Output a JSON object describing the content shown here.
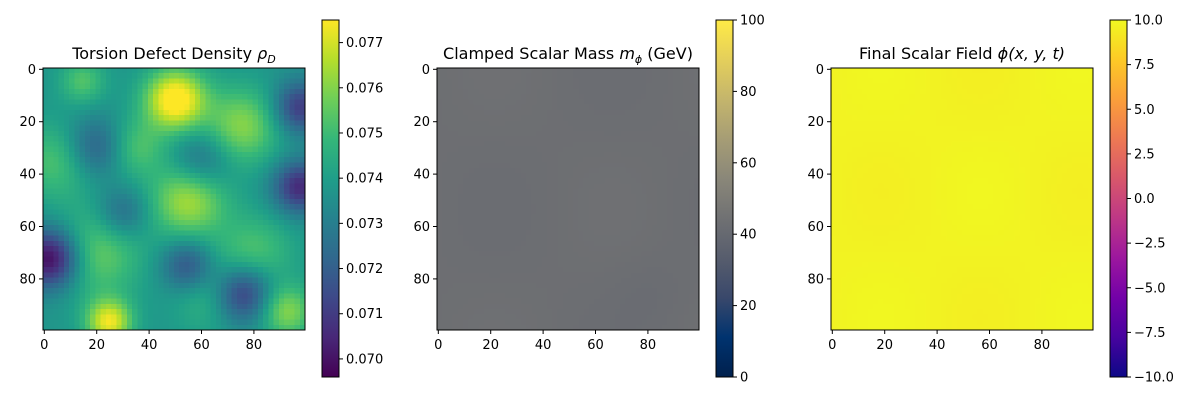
{
  "chart_data": [
    {
      "type": "heatmap",
      "title_main": "Torsion Defect Density ",
      "title_symbol": "ρ",
      "title_sub": "D",
      "title_unit": "",
      "colormap": "viridis",
      "xticks": [
        0,
        20,
        40,
        60,
        80
      ],
      "yticks": [
        0,
        20,
        40,
        60,
        80
      ],
      "xlim": [
        0,
        99
      ],
      "ylim": [
        99,
        0
      ],
      "colorbar_range": [
        0.0696,
        0.0775
      ],
      "colorbar_ticks": [
        "0.070",
        "0.071",
        "0.072",
        "0.073",
        "0.074",
        "0.075",
        "0.076",
        "0.077"
      ],
      "colorbar_tick_values": [
        0.07,
        0.071,
        0.072,
        0.073,
        0.074,
        0.075,
        0.076,
        0.077
      ]
    },
    {
      "type": "heatmap",
      "title_main": "Clamped Scalar Mass ",
      "title_symbol": "m",
      "title_sub": "ϕ",
      "title_unit": " (GeV)",
      "colormap": "cividis",
      "xticks": [
        0,
        20,
        40,
        60,
        80
      ],
      "yticks": [
        0,
        20,
        40,
        60,
        80
      ],
      "xlim": [
        0,
        99
      ],
      "ylim": [
        99,
        0
      ],
      "colorbar_range": [
        0,
        100
      ],
      "colorbar_ticks": [
        "0",
        "20",
        "40",
        "60",
        "80",
        "100"
      ],
      "colorbar_tick_values": [
        0,
        20,
        40,
        60,
        80,
        100
      ],
      "approx_field_value": 43
    },
    {
      "type": "heatmap",
      "title_main": "Final Scalar Field ",
      "title_symbol": "ϕ(x, y, t)",
      "title_sub": "",
      "title_unit": "",
      "colormap": "plasma",
      "xticks": [
        0,
        20,
        40,
        60,
        80
      ],
      "yticks": [
        0,
        20,
        40,
        60,
        80
      ],
      "xlim": [
        0,
        99
      ],
      "ylim": [
        99,
        0
      ],
      "colorbar_range": [
        -10,
        10
      ],
      "colorbar_ticks": [
        "−10.0",
        "−7.5",
        "−5.0",
        "−2.5",
        "0.0",
        "2.5",
        "5.0",
        "7.5",
        "10.0"
      ],
      "colorbar_tick_values": [
        -10,
        -7.5,
        -5,
        -2.5,
        0,
        2.5,
        5,
        7.5,
        10
      ],
      "approx_field_value": 10
    }
  ]
}
